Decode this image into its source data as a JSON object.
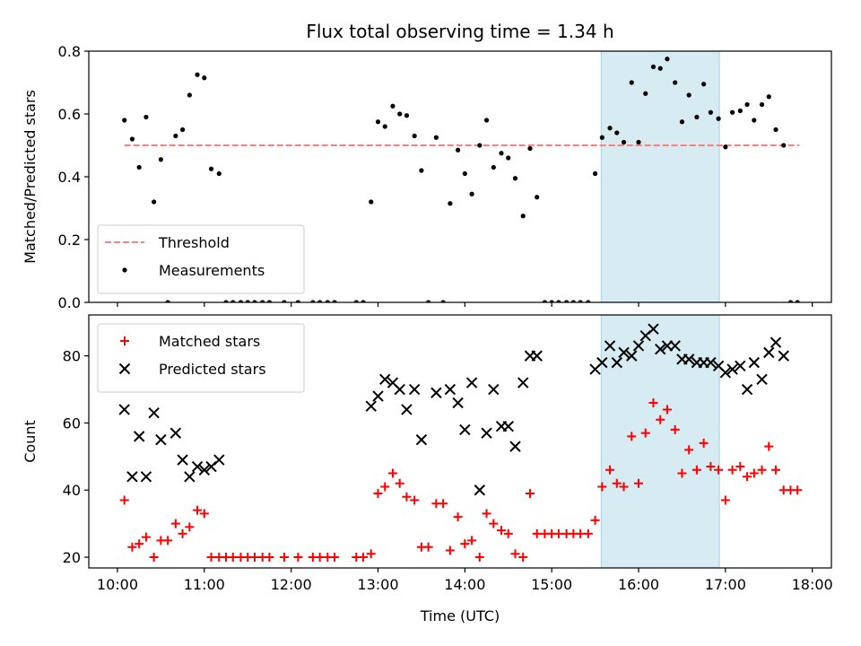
{
  "title": "Flux total observing time = 1.34 h",
  "xlabel": "Time (UTC)",
  "x_ticks": [
    "10:00",
    "11:00",
    "12:00",
    "13:00",
    "14:00",
    "15:00",
    "16:00",
    "17:00",
    "18:00"
  ],
  "colors": {
    "threshold": "#ff7f7f",
    "measurements": "#000000",
    "matched": "#ff0000",
    "predicted": "#000000",
    "highlight": "#add8e6"
  },
  "chart_data": [
    {
      "type": "scatter",
      "ylabel": "Matched/Predicted stars",
      "ylim": [
        0,
        0.8
      ],
      "y_ticks": [
        "0.0",
        "0.2",
        "0.4",
        "0.6",
        "0.8"
      ],
      "xlim_hours": [
        9.67,
        18.22
      ],
      "highlight_span_hours": [
        15.57,
        16.93
      ],
      "threshold": {
        "label": "Threshold",
        "value": 0.5,
        "x_range_hours": [
          10.08,
          17.85
        ]
      },
      "legend_position": "lower left",
      "series": [
        {
          "name": "Measurements",
          "points_hours": [
            [
              10.08,
              0.58
            ],
            [
              10.17,
              0.52
            ],
            [
              10.25,
              0.43
            ],
            [
              10.33,
              0.59
            ],
            [
              10.42,
              0.32
            ],
            [
              10.5,
              0.455
            ],
            [
              10.58,
              0.0
            ],
            [
              10.67,
              0.53
            ],
            [
              10.75,
              0.55
            ],
            [
              10.83,
              0.66
            ],
            [
              10.92,
              0.725
            ],
            [
              11.0,
              0.715
            ],
            [
              11.08,
              0.425
            ],
            [
              11.17,
              0.41
            ],
            [
              11.25,
              0.0
            ],
            [
              11.33,
              0.0
            ],
            [
              11.42,
              0.0
            ],
            [
              11.5,
              0.0
            ],
            [
              11.58,
              0.0
            ],
            [
              11.67,
              0.0
            ],
            [
              11.75,
              0.0
            ],
            [
              11.92,
              0.0
            ],
            [
              12.08,
              0.0
            ],
            [
              12.25,
              0.0
            ],
            [
              12.33,
              0.0
            ],
            [
              12.42,
              0.0
            ],
            [
              12.5,
              0.0
            ],
            [
              12.75,
              0.0
            ],
            [
              12.83,
              0.0
            ],
            [
              12.92,
              0.32
            ],
            [
              13.0,
              0.575
            ],
            [
              13.08,
              0.56
            ],
            [
              13.17,
              0.625
            ],
            [
              13.25,
              0.6
            ],
            [
              13.33,
              0.595
            ],
            [
              13.42,
              0.53
            ],
            [
              13.5,
              0.42
            ],
            [
              13.58,
              0.0
            ],
            [
              13.67,
              0.525
            ],
            [
              13.75,
              0.0
            ],
            [
              13.83,
              0.315
            ],
            [
              13.92,
              0.485
            ],
            [
              14.0,
              0.41
            ],
            [
              14.08,
              0.345
            ],
            [
              14.17,
              0.5
            ],
            [
              14.25,
              0.58
            ],
            [
              14.33,
              0.43
            ],
            [
              14.42,
              0.475
            ],
            [
              14.5,
              0.46
            ],
            [
              14.58,
              0.395
            ],
            [
              14.67,
              0.275
            ],
            [
              14.75,
              0.49
            ],
            [
              14.83,
              0.335
            ],
            [
              14.92,
              0.0
            ],
            [
              15.0,
              0.0
            ],
            [
              15.08,
              0.0
            ],
            [
              15.17,
              0.0
            ],
            [
              15.25,
              0.0
            ],
            [
              15.33,
              0.0
            ],
            [
              15.42,
              0.0
            ],
            [
              15.5,
              0.41
            ],
            [
              15.58,
              0.525
            ],
            [
              15.67,
              0.555
            ],
            [
              15.75,
              0.54
            ],
            [
              15.83,
              0.51
            ],
            [
              15.92,
              0.7
            ],
            [
              16.0,
              0.51
            ],
            [
              16.08,
              0.665
            ],
            [
              16.17,
              0.75
            ],
            [
              16.25,
              0.745
            ],
            [
              16.33,
              0.775
            ],
            [
              16.42,
              0.7
            ],
            [
              16.5,
              0.575
            ],
            [
              16.58,
              0.66
            ],
            [
              16.67,
              0.59
            ],
            [
              16.75,
              0.695
            ],
            [
              16.83,
              0.605
            ],
            [
              16.92,
              0.585
            ],
            [
              17.0,
              0.495
            ],
            [
              17.08,
              0.605
            ],
            [
              17.17,
              0.61
            ],
            [
              17.25,
              0.63
            ],
            [
              17.33,
              0.58
            ],
            [
              17.42,
              0.63
            ],
            [
              17.5,
              0.655
            ],
            [
              17.58,
              0.55
            ],
            [
              17.67,
              0.5
            ],
            [
              17.75,
              0.0
            ],
            [
              17.83,
              0.0
            ]
          ]
        }
      ]
    },
    {
      "type": "scatter",
      "ylabel": "Count",
      "ylim": [
        16.8,
        92.2
      ],
      "y_ticks": [
        "20",
        "40",
        "60",
        "80"
      ],
      "xlim_hours": [
        9.67,
        18.22
      ],
      "highlight_span_hours": [
        15.57,
        16.93
      ],
      "legend_position": "upper left",
      "series": [
        {
          "name": "Matched stars",
          "marker": "plus",
          "points_hours": [
            [
              10.08,
              37
            ],
            [
              10.17,
              23
            ],
            [
              10.25,
              24
            ],
            [
              10.33,
              26
            ],
            [
              10.42,
              20
            ],
            [
              10.5,
              25
            ],
            [
              10.58,
              25
            ],
            [
              10.67,
              30
            ],
            [
              10.75,
              27
            ],
            [
              10.83,
              29
            ],
            [
              10.92,
              34
            ],
            [
              11.0,
              33
            ],
            [
              11.08,
              20
            ],
            [
              11.17,
              20
            ],
            [
              11.25,
              20
            ],
            [
              11.33,
              20
            ],
            [
              11.42,
              20
            ],
            [
              11.5,
              20
            ],
            [
              11.58,
              20
            ],
            [
              11.67,
              20
            ],
            [
              11.75,
              20
            ],
            [
              11.92,
              20
            ],
            [
              12.08,
              20
            ],
            [
              12.25,
              20
            ],
            [
              12.33,
              20
            ],
            [
              12.42,
              20
            ],
            [
              12.5,
              20
            ],
            [
              12.75,
              20
            ],
            [
              12.83,
              20
            ],
            [
              12.92,
              21
            ],
            [
              13.0,
              39
            ],
            [
              13.08,
              41
            ],
            [
              13.17,
              45
            ],
            [
              13.25,
              42
            ],
            [
              13.33,
              38
            ],
            [
              13.42,
              37
            ],
            [
              13.5,
              23
            ],
            [
              13.58,
              23
            ],
            [
              13.67,
              36
            ],
            [
              13.75,
              36
            ],
            [
              13.83,
              22
            ],
            [
              13.92,
              32
            ],
            [
              14.0,
              24
            ],
            [
              14.08,
              25
            ],
            [
              14.17,
              20
            ],
            [
              14.25,
              33
            ],
            [
              14.33,
              30
            ],
            [
              14.42,
              28
            ],
            [
              14.5,
              27
            ],
            [
              14.58,
              21
            ],
            [
              14.67,
              20
            ],
            [
              14.75,
              39
            ],
            [
              14.83,
              27
            ],
            [
              14.92,
              27
            ],
            [
              15.0,
              27
            ],
            [
              15.08,
              27
            ],
            [
              15.17,
              27
            ],
            [
              15.25,
              27
            ],
            [
              15.33,
              27
            ],
            [
              15.42,
              27
            ],
            [
              15.5,
              31
            ],
            [
              15.58,
              41
            ],
            [
              15.67,
              46
            ],
            [
              15.75,
              42
            ],
            [
              15.83,
              41
            ],
            [
              15.92,
              56
            ],
            [
              16.0,
              42
            ],
            [
              16.08,
              57
            ],
            [
              16.17,
              66
            ],
            [
              16.25,
              61
            ],
            [
              16.33,
              64
            ],
            [
              16.42,
              58
            ],
            [
              16.5,
              45
            ],
            [
              16.58,
              52
            ],
            [
              16.67,
              46
            ],
            [
              16.75,
              54
            ],
            [
              16.83,
              47
            ],
            [
              16.92,
              46
            ],
            [
              17.0,
              37
            ],
            [
              17.08,
              46
            ],
            [
              17.17,
              47
            ],
            [
              17.25,
              44
            ],
            [
              17.33,
              45
            ],
            [
              17.42,
              46
            ],
            [
              17.5,
              53
            ],
            [
              17.58,
              46
            ],
            [
              17.67,
              40
            ],
            [
              17.75,
              40
            ],
            [
              17.83,
              40
            ]
          ]
        },
        {
          "name": "Predicted stars",
          "marker": "x",
          "points_hours": [
            [
              10.08,
              64
            ],
            [
              10.17,
              44
            ],
            [
              10.25,
              56
            ],
            [
              10.33,
              44
            ],
            [
              10.42,
              63
            ],
            [
              10.5,
              55
            ],
            [
              10.67,
              57
            ],
            [
              10.75,
              49
            ],
            [
              10.83,
              44
            ],
            [
              10.92,
              47
            ],
            [
              11.0,
              46
            ],
            [
              11.08,
              47
            ],
            [
              11.17,
              49
            ],
            [
              12.92,
              65
            ],
            [
              13.0,
              68
            ],
            [
              13.08,
              73
            ],
            [
              13.17,
              72
            ],
            [
              13.25,
              70
            ],
            [
              13.33,
              64
            ],
            [
              13.42,
              70
            ],
            [
              13.5,
              55
            ],
            [
              13.67,
              69
            ],
            [
              13.83,
              70
            ],
            [
              13.92,
              66
            ],
            [
              14.0,
              58
            ],
            [
              14.08,
              72
            ],
            [
              14.17,
              40
            ],
            [
              14.25,
              57
            ],
            [
              14.33,
              70
            ],
            [
              14.42,
              59
            ],
            [
              14.5,
              59
            ],
            [
              14.58,
              53
            ],
            [
              14.67,
              72
            ],
            [
              14.75,
              80
            ],
            [
              14.83,
              80
            ],
            [
              15.5,
              76
            ],
            [
              15.58,
              78
            ],
            [
              15.67,
              83
            ],
            [
              15.75,
              78
            ],
            [
              15.83,
              81
            ],
            [
              15.92,
              80
            ],
            [
              16.0,
              83
            ],
            [
              16.08,
              86
            ],
            [
              16.17,
              88
            ],
            [
              16.25,
              82
            ],
            [
              16.33,
              83
            ],
            [
              16.42,
              83
            ],
            [
              16.5,
              79
            ],
            [
              16.58,
              79
            ],
            [
              16.67,
              78
            ],
            [
              16.75,
              78
            ],
            [
              16.83,
              78
            ],
            [
              16.92,
              77
            ],
            [
              17.0,
              75
            ],
            [
              17.08,
              76
            ],
            [
              17.17,
              77
            ],
            [
              17.25,
              70
            ],
            [
              17.33,
              78
            ],
            [
              17.42,
              73
            ],
            [
              17.5,
              81
            ],
            [
              17.58,
              84
            ],
            [
              17.67,
              80
            ]
          ]
        }
      ]
    }
  ]
}
